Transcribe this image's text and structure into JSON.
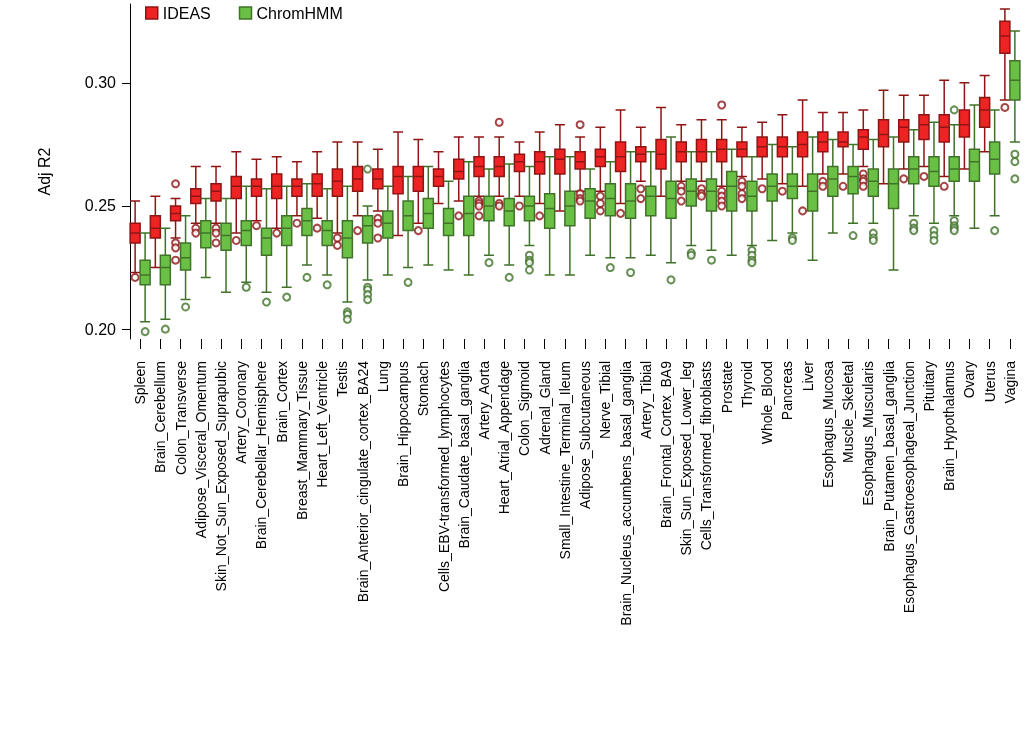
{
  "chart_data": {
    "type": "box",
    "ylabel": "Adj R2",
    "legend": "top left",
    "categories": [
      "Spleen",
      "Brain_Cerebellum",
      "Colon_Transverse",
      "Adipose_Visceral_Omentum",
      "Skin_Not_Sun_Exposed_Suprapubic",
      "Artery_Coronary",
      "Brain_Cerebellar_Hemisphere",
      "Brain_Cortex",
      "Breast_Mammary_Tissue",
      "Heart_Left_Ventricle",
      "Testis",
      "Brain_Anterior_cingulate_cortex_BA24",
      "Lung",
      "Brain_Hippocampus",
      "Stomach",
      "Cells_EBV-transformed_lymphocytes",
      "Brain_Caudate_basal_ganglia",
      "Artery_Aorta",
      "Heart_Atrial_Appendage",
      "Colon_Sigmoid",
      "Adrenal_Gland",
      "Small_Intestine_Terminal_Ileum",
      "Adipose_Subcutaneous",
      "Nerve_Tibial",
      "Brain_Nucleus_accumbens_basal_ganglia",
      "Artery_Tibial",
      "Brain_Frontal_Cortex_BA9",
      "Skin_Sun_Exposed_Lower_leg",
      "Cells_Transformed_fibroblasts",
      "Prostate",
      "Thyroid",
      "Whole_Blood",
      "Pancreas",
      "Liver",
      "Esophagus_Mucosa",
      "Muscle_Skeletal",
      "Esophagus_Muscularis",
      "Brain_Putamen_basal_ganglia",
      "Esophagus_Gastroesophageal_Junction",
      "Pituitary",
      "Brain_Hypothalamus",
      "Ovary",
      "Uterus",
      "Vagina"
    ],
    "ylim": [
      0.196,
      0.332
    ],
    "yticks": [
      {
        "value": 0.2,
        "label": "0.20"
      },
      {
        "value": 0.25,
        "label": "0.25"
      },
      {
        "value": 0.3,
        "label": "0.30"
      }
    ],
    "series": [
      {
        "name": "IDEAS",
        "color": "#ee2323",
        "boxes": [
          {
            "low": 0.223,
            "q1": 0.235,
            "median": 0.239,
            "q3": 0.243,
            "high": 0.252,
            "outliers": [
              0.221
            ]
          },
          {
            "low": 0.225,
            "q1": 0.237,
            "median": 0.241,
            "q3": 0.246,
            "high": 0.254
          },
          {
            "low": 0.237,
            "q1": 0.244,
            "median": 0.247,
            "q3": 0.25,
            "high": 0.253,
            "outliers": [
              0.259,
              0.235,
              0.233,
              0.228
            ]
          },
          {
            "low": 0.243,
            "q1": 0.251,
            "median": 0.254,
            "q3": 0.257,
            "high": 0.266,
            "outliers": [
              0.241,
              0.239
            ]
          },
          {
            "low": 0.243,
            "q1": 0.252,
            "median": 0.256,
            "q3": 0.259,
            "high": 0.266,
            "outliers": [
              0.241,
              0.239,
              0.235
            ]
          },
          {
            "low": 0.239,
            "q1": 0.253,
            "median": 0.258,
            "q3": 0.262,
            "high": 0.272,
            "outliers": [
              0.236
            ]
          },
          {
            "low": 0.244,
            "q1": 0.254,
            "median": 0.258,
            "q3": 0.261,
            "high": 0.269,
            "outliers": [
              0.242
            ]
          },
          {
            "low": 0.241,
            "q1": 0.253,
            "median": 0.258,
            "q3": 0.263,
            "high": 0.27,
            "outliers": [
              0.239
            ]
          },
          {
            "low": 0.246,
            "q1": 0.254,
            "median": 0.258,
            "q3": 0.261,
            "high": 0.268,
            "outliers": [
              0.243
            ]
          },
          {
            "low": 0.245,
            "q1": 0.254,
            "median": 0.259,
            "q3": 0.263,
            "high": 0.272,
            "outliers": [
              0.241
            ]
          },
          {
            "low": 0.239,
            "q1": 0.254,
            "median": 0.26,
            "q3": 0.265,
            "high": 0.276,
            "outliers": [
              0.237,
              0.234
            ]
          },
          {
            "low": 0.246,
            "q1": 0.256,
            "median": 0.261,
            "q3": 0.266,
            "high": 0.276,
            "outliers": [
              0.24
            ]
          },
          {
            "low": 0.248,
            "q1": 0.257,
            "median": 0.261,
            "q3": 0.265,
            "high": 0.273,
            "outliers": [
              0.245,
              0.243,
              0.237
            ]
          },
          {
            "low": 0.238,
            "q1": 0.255,
            "median": 0.262,
            "q3": 0.266,
            "high": 0.28
          },
          {
            "low": 0.243,
            "q1": 0.256,
            "median": 0.262,
            "q3": 0.266,
            "high": 0.277,
            "outliers": [
              0.24
            ]
          },
          {
            "low": 0.251,
            "q1": 0.258,
            "median": 0.262,
            "q3": 0.265,
            "high": 0.272
          },
          {
            "low": 0.252,
            "q1": 0.261,
            "median": 0.264,
            "q3": 0.269,
            "high": 0.278,
            "outliers": [
              0.246
            ]
          },
          {
            "low": 0.254,
            "q1": 0.262,
            "median": 0.266,
            "q3": 0.27,
            "high": 0.278,
            "outliers": [
              0.252,
              0.251,
              0.25,
              0.246
            ]
          },
          {
            "low": 0.254,
            "q1": 0.262,
            "median": 0.266,
            "q3": 0.27,
            "high": 0.278,
            "outliers": [
              0.284,
              0.251,
              0.25
            ]
          },
          {
            "low": 0.254,
            "q1": 0.264,
            "median": 0.268,
            "q3": 0.271,
            "high": 0.276,
            "outliers": [
              0.25
            ]
          },
          {
            "low": 0.251,
            "q1": 0.263,
            "median": 0.268,
            "q3": 0.272,
            "high": 0.28,
            "outliers": [
              0.246
            ]
          },
          {
            "low": 0.248,
            "q1": 0.263,
            "median": 0.269,
            "q3": 0.273,
            "high": 0.283
          },
          {
            "low": 0.256,
            "q1": 0.265,
            "median": 0.268,
            "q3": 0.272,
            "high": 0.278,
            "outliers": [
              0.283,
              0.255,
              0.253,
              0.252
            ]
          },
          {
            "low": 0.256,
            "q1": 0.266,
            "median": 0.27,
            "q3": 0.273,
            "high": 0.282,
            "outliers": [
              0.254,
              0.251,
              0.248
            ]
          },
          {
            "low": 0.251,
            "q1": 0.264,
            "median": 0.27,
            "q3": 0.276,
            "high": 0.289,
            "outliers": [
              0.247
            ]
          },
          {
            "low": 0.26,
            "q1": 0.268,
            "median": 0.271,
            "q3": 0.274,
            "high": 0.282,
            "outliers": [
              0.257,
              0.253
            ]
          },
          {
            "low": 0.254,
            "q1": 0.265,
            "median": 0.271,
            "q3": 0.277,
            "high": 0.29
          },
          {
            "low": 0.26,
            "q1": 0.268,
            "median": 0.272,
            "q3": 0.276,
            "high": 0.283,
            "outliers": [
              0.258,
              0.256,
              0.252
            ]
          },
          {
            "low": 0.26,
            "q1": 0.268,
            "median": 0.272,
            "q3": 0.277,
            "high": 0.285,
            "outliers": [
              0.257,
              0.255,
              0.254
            ]
          },
          {
            "low": 0.258,
            "q1": 0.268,
            "median": 0.273,
            "q3": 0.277,
            "high": 0.285,
            "outliers": [
              0.291,
              0.256,
              0.254,
              0.252,
              0.25
            ]
          },
          {
            "low": 0.262,
            "q1": 0.27,
            "median": 0.273,
            "q3": 0.276,
            "high": 0.282,
            "outliers": [
              0.26,
              0.258,
              0.255,
              0.253
            ]
          },
          {
            "low": 0.261,
            "q1": 0.27,
            "median": 0.274,
            "q3": 0.278,
            "high": 0.284,
            "outliers": [
              0.257
            ]
          },
          {
            "low": 0.259,
            "q1": 0.27,
            "median": 0.274,
            "q3": 0.278,
            "high": 0.287,
            "outliers": [
              0.256
            ]
          },
          {
            "low": 0.258,
            "q1": 0.27,
            "median": 0.275,
            "q3": 0.28,
            "high": 0.293,
            "outliers": [
              0.248
            ]
          },
          {
            "low": 0.263,
            "q1": 0.272,
            "median": 0.276,
            "q3": 0.28,
            "high": 0.288,
            "outliers": [
              0.26,
              0.258
            ]
          },
          {
            "low": 0.263,
            "q1": 0.274,
            "median": 0.276,
            "q3": 0.28,
            "high": 0.288,
            "outliers": [
              0.258
            ]
          },
          {
            "low": 0.266,
            "q1": 0.273,
            "median": 0.278,
            "q3": 0.281,
            "high": 0.289,
            "outliers": [
              0.263,
              0.261,
              0.26,
              0.258
            ]
          },
          {
            "low": 0.259,
            "q1": 0.274,
            "median": 0.279,
            "q3": 0.285,
            "high": 0.297
          },
          {
            "low": 0.265,
            "q1": 0.276,
            "median": 0.282,
            "q3": 0.285,
            "high": 0.295,
            "outliers": [
              0.261
            ]
          },
          {
            "low": 0.266,
            "q1": 0.277,
            "median": 0.283,
            "q3": 0.287,
            "high": 0.295,
            "outliers": [
              0.262
            ]
          },
          {
            "low": 0.262,
            "q1": 0.276,
            "median": 0.282,
            "q3": 0.287,
            "high": 0.301,
            "outliers": [
              0.258
            ]
          },
          {
            "low": 0.265,
            "q1": 0.278,
            "median": 0.283,
            "q3": 0.289,
            "high": 0.3
          },
          {
            "low": 0.272,
            "q1": 0.282,
            "median": 0.289,
            "q3": 0.294,
            "high": 0.303
          },
          {
            "low": 0.293,
            "q1": 0.312,
            "median": 0.319,
            "q3": 0.325,
            "high": 0.33,
            "outliers": [
              0.29
            ]
          }
        ]
      },
      {
        "name": "ChromHMM",
        "color": "#6abf45",
        "boxes": [
          {
            "low": 0.203,
            "q1": 0.218,
            "median": 0.222,
            "q3": 0.228,
            "high": 0.239,
            "outliers": [
              0.199
            ]
          },
          {
            "low": 0.204,
            "q1": 0.218,
            "median": 0.225,
            "q3": 0.23,
            "high": 0.241,
            "outliers": [
              0.2
            ]
          },
          {
            "low": 0.212,
            "q1": 0.224,
            "median": 0.229,
            "q3": 0.235,
            "high": 0.246,
            "outliers": [
              0.209
            ]
          },
          {
            "low": 0.221,
            "q1": 0.233,
            "median": 0.239,
            "q3": 0.244,
            "high": 0.253
          },
          {
            "low": 0.215,
            "q1": 0.232,
            "median": 0.238,
            "q3": 0.243,
            "high": 0.253
          },
          {
            "low": 0.219,
            "q1": 0.234,
            "median": 0.24,
            "q3": 0.244,
            "high": 0.258,
            "outliers": [
              0.217
            ]
          },
          {
            "low": 0.215,
            "q1": 0.23,
            "median": 0.237,
            "q3": 0.241,
            "high": 0.257,
            "outliers": [
              0.211
            ]
          },
          {
            "low": 0.217,
            "q1": 0.234,
            "median": 0.241,
            "q3": 0.246,
            "high": 0.258,
            "outliers": [
              0.213
            ]
          },
          {
            "low": 0.226,
            "q1": 0.238,
            "median": 0.244,
            "q3": 0.249,
            "high": 0.259,
            "outliers": [
              0.221
            ]
          },
          {
            "low": 0.222,
            "q1": 0.234,
            "median": 0.24,
            "q3": 0.244,
            "high": 0.257,
            "outliers": [
              0.218
            ]
          },
          {
            "low": 0.211,
            "q1": 0.229,
            "median": 0.237,
            "q3": 0.244,
            "high": 0.258,
            "outliers": [
              0.207,
              0.206,
              0.204
            ]
          },
          {
            "low": 0.22,
            "q1": 0.235,
            "median": 0.242,
            "q3": 0.246,
            "high": 0.25,
            "outliers": [
              0.265,
              0.217,
              0.216,
              0.214,
              0.212
            ]
          },
          {
            "low": 0.222,
            "q1": 0.237,
            "median": 0.243,
            "q3": 0.248,
            "high": 0.258
          },
          {
            "low": 0.225,
            "q1": 0.24,
            "median": 0.246,
            "q3": 0.252,
            "high": 0.262,
            "outliers": [
              0.219
            ]
          },
          {
            "low": 0.226,
            "q1": 0.241,
            "median": 0.247,
            "q3": 0.253,
            "high": 0.266
          },
          {
            "low": 0.224,
            "q1": 0.238,
            "median": 0.243,
            "q3": 0.249,
            "high": 0.26
          },
          {
            "low": 0.222,
            "q1": 0.238,
            "median": 0.247,
            "q3": 0.254,
            "high": 0.268
          },
          {
            "low": 0.23,
            "q1": 0.244,
            "median": 0.25,
            "q3": 0.254,
            "high": 0.265,
            "outliers": [
              0.227
            ]
          },
          {
            "low": 0.226,
            "q1": 0.242,
            "median": 0.248,
            "q3": 0.253,
            "high": 0.267,
            "outliers": [
              0.221
            ]
          },
          {
            "low": 0.234,
            "q1": 0.244,
            "median": 0.25,
            "q3": 0.254,
            "high": 0.266,
            "outliers": [
              0.23,
              0.228,
              0.227,
              0.224
            ]
          },
          {
            "low": 0.222,
            "q1": 0.241,
            "median": 0.249,
            "q3": 0.255,
            "high": 0.27
          },
          {
            "low": 0.222,
            "q1": 0.242,
            "median": 0.25,
            "q3": 0.256,
            "high": 0.27
          },
          {
            "low": 0.23,
            "q1": 0.245,
            "median": 0.252,
            "q3": 0.257,
            "high": 0.265
          },
          {
            "low": 0.229,
            "q1": 0.246,
            "median": 0.253,
            "q3": 0.259,
            "high": 0.268,
            "outliers": [
              0.225
            ]
          },
          {
            "low": 0.229,
            "q1": 0.245,
            "median": 0.252,
            "q3": 0.259,
            "high": 0.272,
            "outliers": [
              0.223
            ]
          },
          {
            "low": 0.23,
            "q1": 0.246,
            "median": 0.254,
            "q3": 0.258,
            "high": 0.272
          },
          {
            "low": 0.227,
            "q1": 0.245,
            "median": 0.253,
            "q3": 0.26,
            "high": 0.278,
            "outliers": [
              0.22
            ]
          },
          {
            "low": 0.234,
            "q1": 0.25,
            "median": 0.256,
            "q3": 0.261,
            "high": 0.272,
            "outliers": [
              0.231,
              0.23
            ]
          },
          {
            "low": 0.232,
            "q1": 0.248,
            "median": 0.256,
            "q3": 0.261,
            "high": 0.272,
            "outliers": [
              0.228
            ]
          },
          {
            "low": 0.23,
            "q1": 0.248,
            "median": 0.258,
            "q3": 0.264,
            "high": 0.273
          },
          {
            "low": 0.234,
            "q1": 0.248,
            "median": 0.254,
            "q3": 0.26,
            "high": 0.27,
            "outliers": [
              0.232,
              0.23,
              0.228,
              0.227
            ]
          },
          {
            "low": 0.236,
            "q1": 0.252,
            "median": 0.258,
            "q3": 0.263,
            "high": 0.275
          },
          {
            "low": 0.239,
            "q1": 0.253,
            "median": 0.258,
            "q3": 0.263,
            "high": 0.274,
            "outliers": [
              0.237,
              0.236
            ]
          },
          {
            "low": 0.228,
            "q1": 0.248,
            "median": 0.256,
            "q3": 0.263,
            "high": 0.278
          },
          {
            "low": 0.239,
            "q1": 0.254,
            "median": 0.261,
            "q3": 0.266,
            "high": 0.277
          },
          {
            "low": 0.243,
            "q1": 0.255,
            "median": 0.262,
            "q3": 0.266,
            "high": 0.275,
            "outliers": [
              0.238
            ]
          },
          {
            "low": 0.243,
            "q1": 0.254,
            "median": 0.26,
            "q3": 0.265,
            "high": 0.277,
            "outliers": [
              0.239,
              0.237,
              0.236
            ]
          },
          {
            "low": 0.224,
            "q1": 0.249,
            "median": 0.259,
            "q3": 0.265,
            "high": 0.278
          },
          {
            "low": 0.246,
            "q1": 0.259,
            "median": 0.265,
            "q3": 0.27,
            "high": 0.281,
            "outliers": [
              0.243,
              0.241,
              0.24
            ]
          },
          {
            "low": 0.243,
            "q1": 0.258,
            "median": 0.264,
            "q3": 0.27,
            "high": 0.284,
            "outliers": [
              0.24,
              0.238,
              0.236
            ]
          },
          {
            "low": 0.246,
            "q1": 0.26,
            "median": 0.265,
            "q3": 0.27,
            "high": 0.283,
            "outliers": [
              0.289,
              0.244,
              0.242,
              0.241,
              0.24
            ]
          },
          {
            "low": 0.241,
            "q1": 0.26,
            "median": 0.268,
            "q3": 0.273,
            "high": 0.291
          },
          {
            "low": 0.246,
            "q1": 0.263,
            "median": 0.269,
            "q3": 0.276,
            "high": 0.289,
            "outliers": [
              0.24
            ]
          },
          {
            "low": 0.276,
            "q1": 0.293,
            "median": 0.301,
            "q3": 0.309,
            "high": 0.321,
            "outliers": [
              0.271,
              0.268,
              0.261
            ]
          }
        ]
      }
    ]
  }
}
